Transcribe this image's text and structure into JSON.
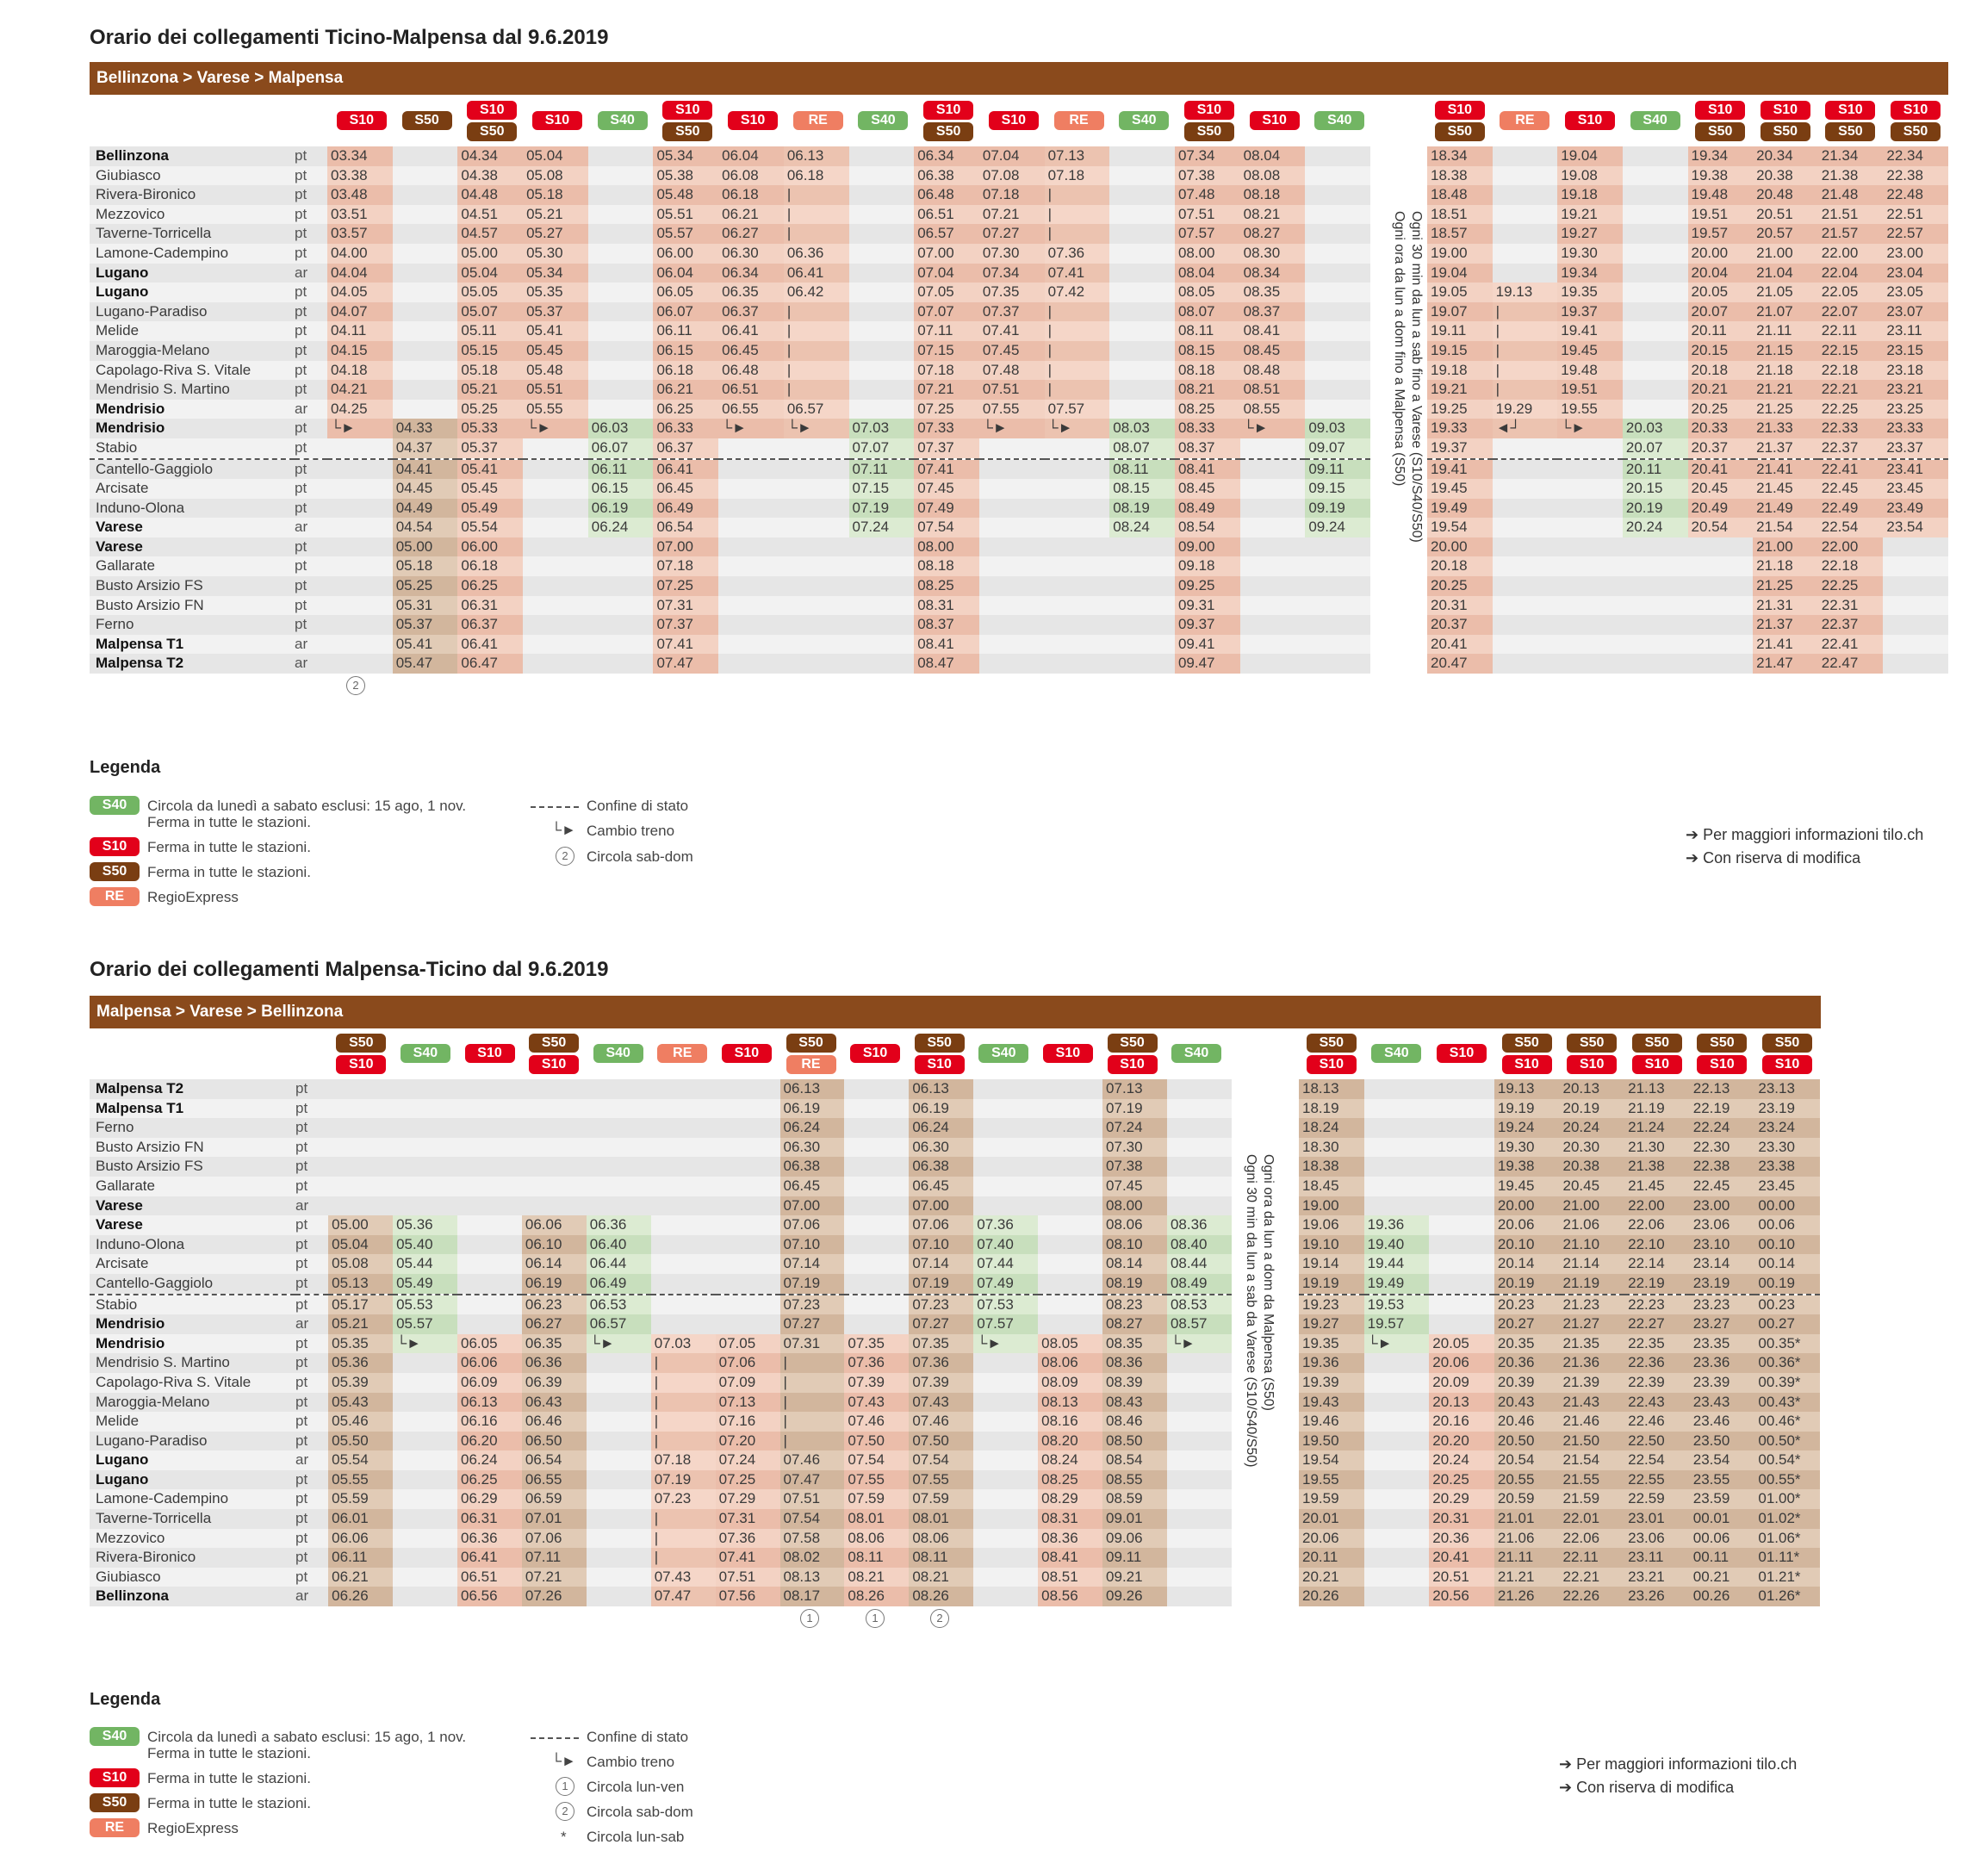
{
  "section1": {
    "title": "Orario dei collegamenti Ticino-Malpensa dal 9.6.2019",
    "route": "Bellinzona > Varese > Malpensa",
    "note_line1": "Ogni 30 min da lun a sab fino a Varese (S10/S40/S50)",
    "note_line2": "Ogni ora da lun a dom fino a Malpensa (S50)",
    "footnote": "2"
  },
  "section2": {
    "title": "Orario dei collegamenti Malpensa-Ticino dal 9.6.2019",
    "route": "Malpensa > Varese > Bellinzona",
    "note_line1": "Ogni ora da lun a dom da Malpensa (S50)",
    "note_line2": "Ogni 30 min da lun a sab da Varese (S10/S40/S50)",
    "footnotes": [
      "1",
      "1",
      "2"
    ]
  },
  "legend": {
    "title": "Legenda",
    "badges": [
      {
        "code": "S40",
        "color": "#72b563",
        "text": "Circola da lunedì a sabato esclusi: 15 ago, 1 nov.\nFerma in tutte le stazioni."
      },
      {
        "code": "S10",
        "color": "#e2001a",
        "text": "Ferma in tutte le stazioni."
      },
      {
        "code": "S50",
        "color": "#7a3e12",
        "text": "Ferma in tutte le stazioni."
      },
      {
        "code": "RE",
        "color": "#ef7e62",
        "text": "RegioExpress"
      }
    ],
    "confine": "Confine di stato",
    "cambio": "Cambio treno",
    "circ1_num": "1",
    "circ1": "Circola lun-ven",
    "circ2_num": "2",
    "circ2": "Circola sab-dom",
    "star_sym": "*",
    "star": "Circola lun-sab"
  },
  "info": {
    "line1": "Per maggiori informazioni tilo.ch",
    "line2": "Con riserva di modifica"
  },
  "colors": {
    "S10": "#e2001a",
    "S50": "#7a3e12",
    "S40": "#72b563",
    "RE": "#ef7e62",
    "header": "#8a4a1c"
  }
}
